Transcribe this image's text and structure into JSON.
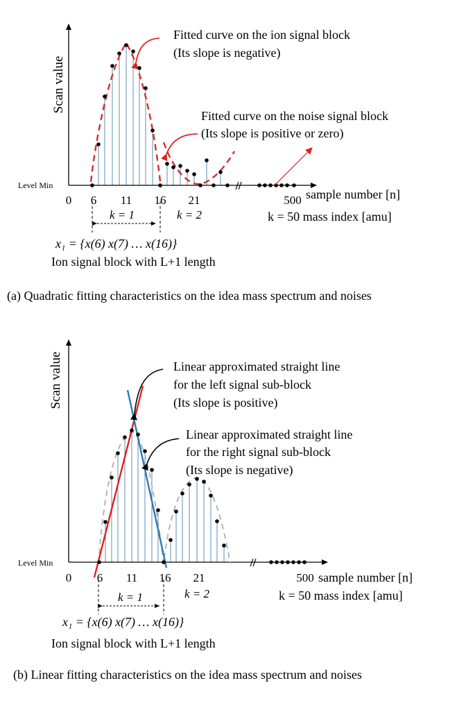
{
  "panel_a": {
    "y_axis_label": "Scan value",
    "level_min_label": "Level Min",
    "tick_labels": [
      "0",
      "6",
      "11",
      "16",
      "21",
      "500"
    ],
    "x_axis_label": "sample number [n]",
    "mass_index_label": "k = 50 mass index [amu]",
    "k1_label": "k = 1",
    "k2_label": "k = 2",
    "ion_fit_line1": "Fitted curve on the ion signal block",
    "ion_fit_line2": "(Its slope is negative)",
    "noise_fit_line1": "Fitted curve on the noise signal block",
    "noise_fit_line2": "(Its slope is positive or zero)",
    "x1_formula": "x₁ = {x(6) x(7)  …  x(16)}",
    "ion_block_label": "Ion signal block with L+1 length",
    "caption": "(a) Quadratic fitting characteristics  on the idea mass spectrum and noises"
  },
  "panel_b": {
    "y_axis_label": "Scan value",
    "level_min_label": "Level Min",
    "tick_labels": [
      "0",
      "6",
      "11",
      "16",
      "21",
      "500"
    ],
    "x_axis_label": "sample number [n]",
    "mass_index_label": "k = 50 mass index [amu]",
    "k1_label": "k = 1",
    "k2_label": "k = 2",
    "left_line1": "Linear approximated straight line",
    "left_line2": "for the left signal sub-block",
    "left_line3": "(Its slope is positive)",
    "right_line1": "Linear approximated straight line",
    "right_line2": "for the right signal sub-block",
    "right_line3": "(Its slope is negative)",
    "x1_formula": "x₁ = {x(6) x(7)  …  x(16)}",
    "ion_block_label": "Ion signal block with L+1 length",
    "caption": "(b) Linear fitting characteristics  on the idea mass spectrum and noises"
  },
  "colors": {
    "stem": "#5b8fb0",
    "fit_curve": "#d92b2b",
    "red_line": "#e02020",
    "blue_line": "#2a7ab8",
    "gray_dashed": "#b4b4b4"
  }
}
